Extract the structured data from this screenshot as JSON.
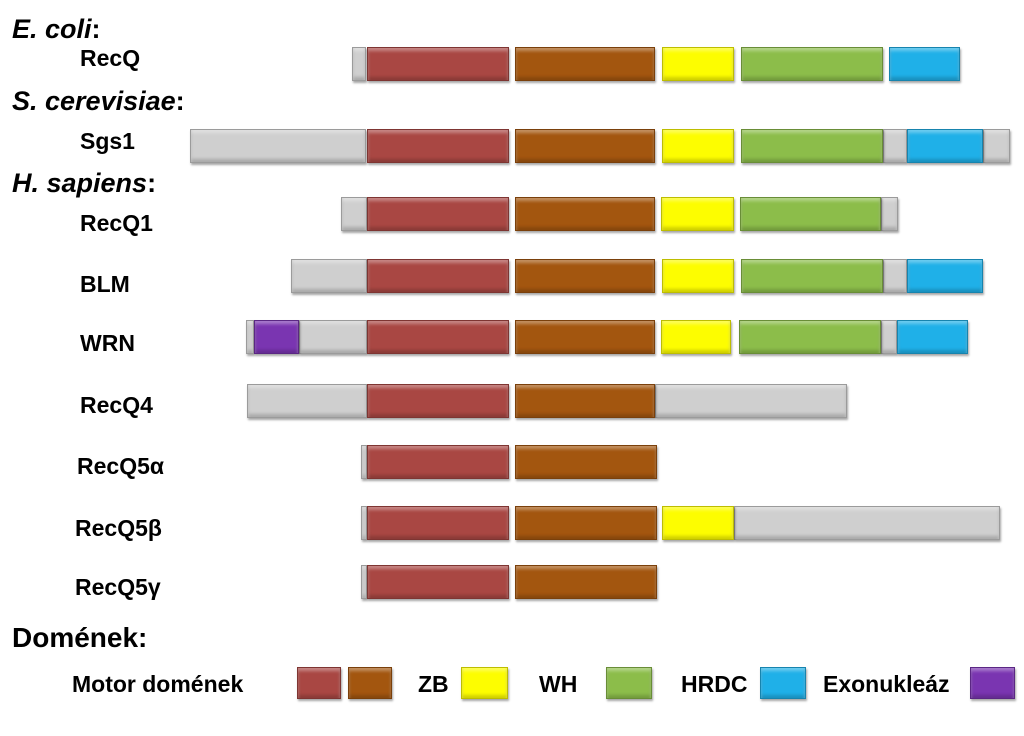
{
  "colors": {
    "motor1": "#a94743",
    "motor2": "#a3560f",
    "zb": "#fdfd00",
    "wh": "#8cbd4a",
    "hrdc": "#1fb0e8",
    "exo": "#7a35b1",
    "other": "#cfcfcf"
  },
  "species": [
    {
      "name": "E. coli",
      "suffix": ":"
    },
    {
      "name": "S. cerevisiae",
      "suffix": ":"
    },
    {
      "name": "H. sapiens",
      "suffix": ":"
    }
  ],
  "proteins": [
    {
      "name": "RecQ",
      "domains": [
        "motor1",
        "motor2",
        "zb",
        "wh",
        "hrdc"
      ]
    },
    {
      "name": "Sgs1",
      "domains": [
        "motor1",
        "motor2",
        "zb",
        "wh",
        "hrdc"
      ]
    },
    {
      "name": "RecQ1",
      "domains": [
        "motor1",
        "motor2",
        "zb",
        "wh"
      ]
    },
    {
      "name": "BLM",
      "domains": [
        "motor1",
        "motor2",
        "zb",
        "wh",
        "hrdc"
      ]
    },
    {
      "name": "WRN",
      "domains": [
        "exo",
        "motor1",
        "motor2",
        "zb",
        "wh",
        "hrdc"
      ]
    },
    {
      "name": "RecQ4",
      "domains": [
        "motor1",
        "motor2"
      ]
    },
    {
      "name": "RecQ5α",
      "domains": [
        "motor1",
        "motor2"
      ]
    },
    {
      "name": "RecQ5β",
      "domains": [
        "motor1",
        "motor2",
        "zb"
      ]
    },
    {
      "name": "RecQ5γ",
      "domains": [
        "motor1",
        "motor2"
      ]
    }
  ],
  "legend": {
    "title": "Domének:",
    "items": [
      {
        "label": "Motor domének",
        "colors": [
          "motor1",
          "motor2"
        ]
      },
      {
        "label": "ZB",
        "colors": [
          "zb"
        ]
      },
      {
        "label": "WH",
        "colors": [
          "wh"
        ]
      },
      {
        "label": "HRDC",
        "colors": [
          "hrdc"
        ]
      },
      {
        "label": "Exonukleáz",
        "colors": [
          "exo"
        ]
      }
    ]
  }
}
